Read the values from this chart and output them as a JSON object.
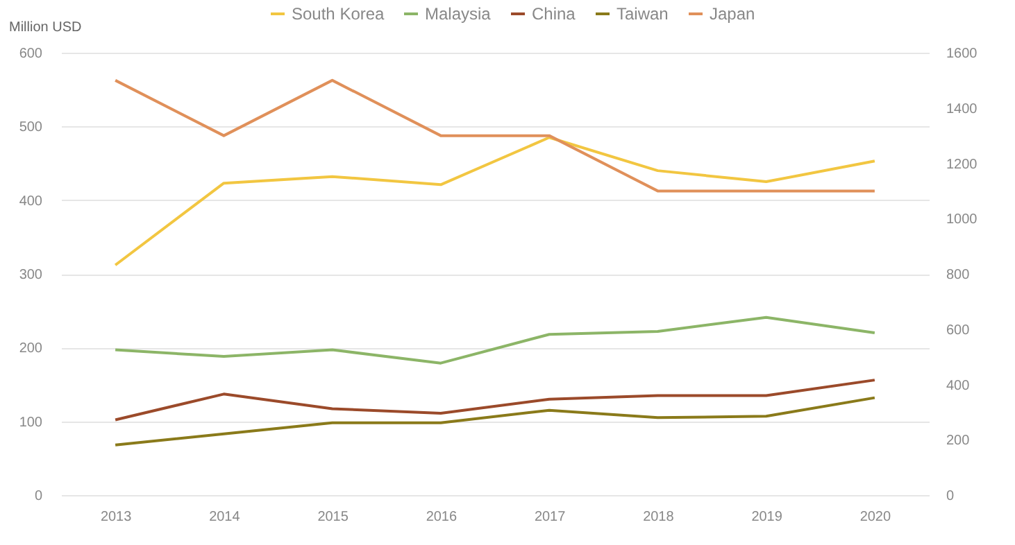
{
  "chart_data": {
    "type": "line",
    "ylabel": "Million USD",
    "categories": [
      "2013",
      "2014",
      "2015",
      "2016",
      "2017",
      "2018",
      "2019",
      "2020"
    ],
    "series": [
      {
        "name": "South Korea",
        "color": "#f2c641",
        "values": [
          312,
          423,
          432,
          421,
          485,
          440,
          425,
          453
        ]
      },
      {
        "name": "Malaysia",
        "color": "#8cb567",
        "values": [
          197,
          188,
          197,
          179,
          218,
          222,
          241,
          220
        ]
      },
      {
        "name": "China",
        "color": "#9b4a2a",
        "values": [
          102,
          137,
          117,
          111,
          130,
          135,
          135,
          156
        ]
      },
      {
        "name": "Taiwan",
        "color": "#8a7a1a",
        "values": [
          68,
          83,
          98,
          98,
          115,
          105,
          107,
          132
        ]
      },
      {
        "name": "Japan",
        "color": "#e0905a",
        "axis": "y2",
        "values": [
          1500,
          1300,
          1500,
          1300,
          1300,
          1100,
          1100,
          1100
        ]
      }
    ],
    "ylim": [
      0,
      600
    ],
    "yticks": [
      0,
      100,
      200,
      300,
      400,
      500,
      600
    ],
    "y2lim": [
      0,
      1600
    ],
    "y2ticks": [
      0,
      200,
      400,
      600,
      800,
      1000,
      1200,
      1400,
      1600
    ],
    "grid": "y",
    "legend": "top"
  }
}
